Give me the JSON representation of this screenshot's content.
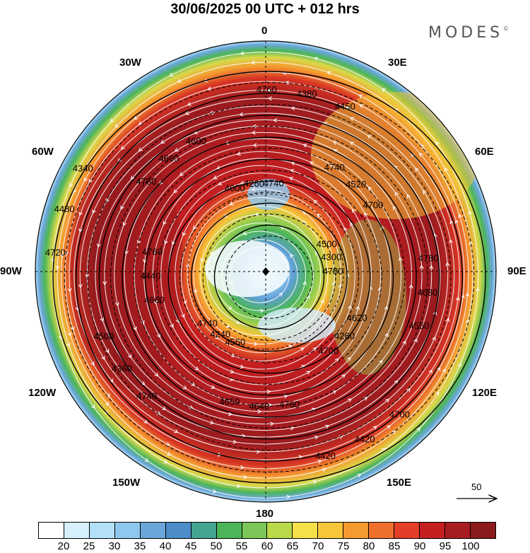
{
  "title": "30/06/2025  00 UTC  + 012 hrs",
  "brand": "MODES",
  "brand_mark": "©",
  "longitudes": {
    "n0": "0",
    "n30w": "30W",
    "n30e": "30E",
    "n60w": "60W",
    "n60e": "60E",
    "n90w": "90W",
    "n90e": "90E",
    "n120w": "120W",
    "n120e": "120E",
    "n150w": "150W",
    "n150e": "150E",
    "n180": "180"
  },
  "colorbar": {
    "colors": [
      "#ffffff",
      "#d6f0fc",
      "#b3e0f8",
      "#8fc8ee",
      "#6aa6da",
      "#4b8cc9",
      "#45a392",
      "#4cb55a",
      "#7cc657",
      "#b9d94a",
      "#f5e04a",
      "#f8c63a",
      "#f59a30",
      "#ef6f2c",
      "#e23e28",
      "#c51f21",
      "#a71d21",
      "#8b1a1c"
    ],
    "ticks": [
      "20",
      "25",
      "30",
      "35",
      "40",
      "45",
      "50",
      "55",
      "60",
      "65",
      "70",
      "75",
      "80",
      "85",
      "90",
      "95",
      "100"
    ]
  },
  "vector_scale": "50",
  "contour_labels": [
    "4780",
    "4740",
    "4740",
    "4700",
    "4760",
    "4700",
    "4650",
    "4600",
    "4550",
    "4500",
    "4450",
    "4420",
    "4340",
    "4300",
    "4240",
    "4260",
    "4260",
    "4440",
    "4520",
    "4640",
    "4600",
    "4680",
    "4360",
    "4380",
    "4420",
    "4480",
    "4500",
    "4560",
    "4600",
    "4620",
    "4660",
    "4740",
    "4760",
    "4780",
    "4780",
    "4740",
    "4760",
    "4700",
    "4720"
  ]
}
